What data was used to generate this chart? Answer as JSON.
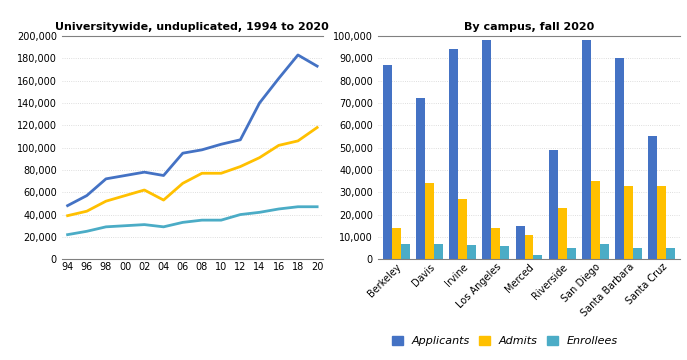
{
  "left_title": "Universitywide, unduplicated, 1994 to 2020",
  "right_title": "By campus, fall 2020",
  "line_year_labels": [
    "94",
    "96",
    "98",
    "00",
    "02",
    "04",
    "06",
    "08",
    "10",
    "12",
    "14",
    "16",
    "18",
    "20"
  ],
  "applicants_line": [
    48000,
    57000,
    72000,
    75000,
    78000,
    75000,
    95000,
    98000,
    103000,
    107000,
    140000,
    162000,
    183000,
    173000
  ],
  "admits_line": [
    39000,
    43000,
    52000,
    57000,
    62000,
    53000,
    68000,
    77000,
    77000,
    83000,
    91000,
    102000,
    106000,
    118000
  ],
  "enrollees_line": [
    22000,
    25000,
    29000,
    30000,
    31000,
    29000,
    33000,
    35000,
    35000,
    40000,
    42000,
    45000,
    47000,
    47000
  ],
  "left_ylim": [
    0,
    200000
  ],
  "left_yticks": [
    0,
    20000,
    40000,
    60000,
    80000,
    100000,
    120000,
    140000,
    160000,
    180000,
    200000
  ],
  "campuses": [
    "Berkeley",
    "Davis",
    "Irvine",
    "Los Angeles",
    "Merced",
    "Riverside",
    "San Diego",
    "Santa Barbara",
    "Santa Cruz"
  ],
  "bar_applicants": [
    87000,
    72000,
    94000,
    98000,
    15000,
    49000,
    98000,
    90000,
    55000
  ],
  "bar_admits": [
    14000,
    34000,
    27000,
    14000,
    11000,
    23000,
    35000,
    33000,
    33000
  ],
  "bar_enrollees": [
    7000,
    7000,
    6500,
    6000,
    2000,
    5000,
    7000,
    5000,
    5000
  ],
  "right_ylim": [
    0,
    100000
  ],
  "right_yticks": [
    0,
    10000,
    20000,
    30000,
    40000,
    50000,
    60000,
    70000,
    80000,
    90000,
    100000
  ],
  "color_applicants": "#4472C4",
  "color_admits": "#FFC000",
  "color_enrollees": "#4BACC6",
  "legend_labels": [
    "Applicants",
    "Admits",
    "Enrollees"
  ],
  "background_color": "#FFFFFF"
}
